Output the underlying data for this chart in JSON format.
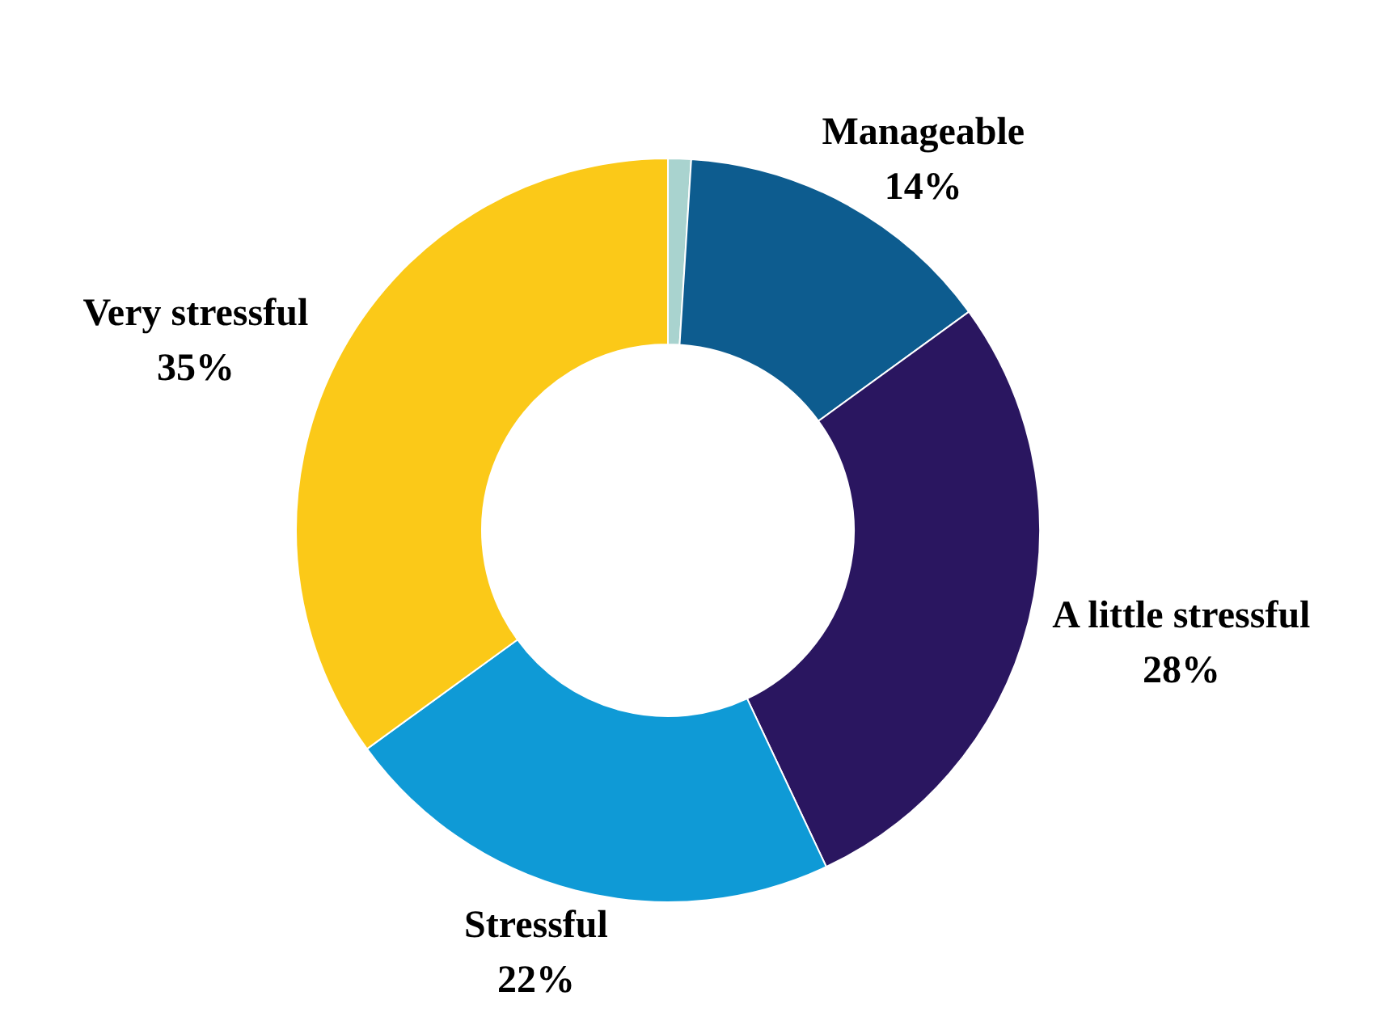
{
  "chart_data": {
    "type": "donut",
    "categories": [
      null,
      "Manageable",
      "A little stressful",
      "Stressful",
      "Very stressful"
    ],
    "values": [
      1,
      14,
      28,
      22,
      35
    ],
    "colors": [
      "#a9d3cf",
      "#0d5c8f",
      "#2a1660",
      "#0f9ad6",
      "#fbc918"
    ],
    "value_labels": [
      null,
      "14%",
      "28%",
      "22%",
      "35%"
    ]
  }
}
